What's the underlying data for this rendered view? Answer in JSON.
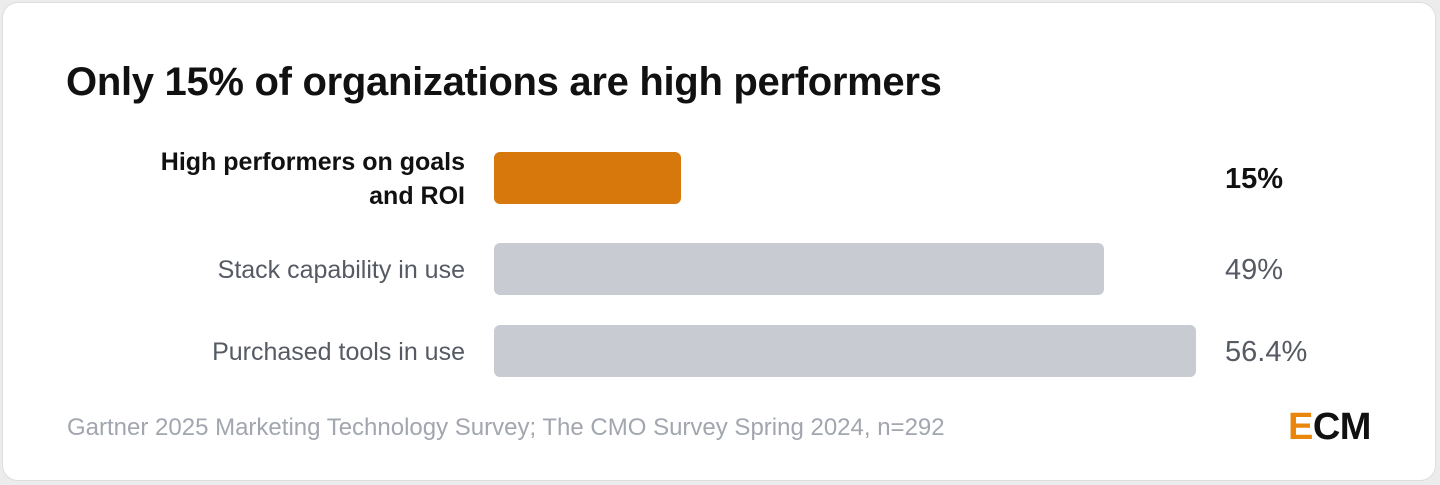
{
  "title": "Only 15% of organizations are high performers",
  "source": "Gartner 2025 Marketing Technology Survey; The CMO Survey Spring 2024, n=292",
  "logo": {
    "accent_letter": "E",
    "rest": "CM"
  },
  "colors": {
    "highlight": "#d6780b",
    "neutral": "#c8cbd2",
    "label_highlight": "#111111",
    "label_neutral": "#555a63",
    "logo_accent": "#e8870c"
  },
  "chart_data": {
    "type": "bar",
    "orientation": "horizontal",
    "categories": [
      [
        "High performers on goals",
        "and ROI"
      ],
      [
        "Stack capability in use"
      ],
      [
        "Purchased tools in use"
      ]
    ],
    "values": [
      15,
      49,
      56.4
    ],
    "value_labels": [
      "15%",
      "49%",
      "56.4%"
    ],
    "highlight_index": 0,
    "xlim": [
      0,
      56.4
    ],
    "grid": false,
    "legend": "none"
  }
}
